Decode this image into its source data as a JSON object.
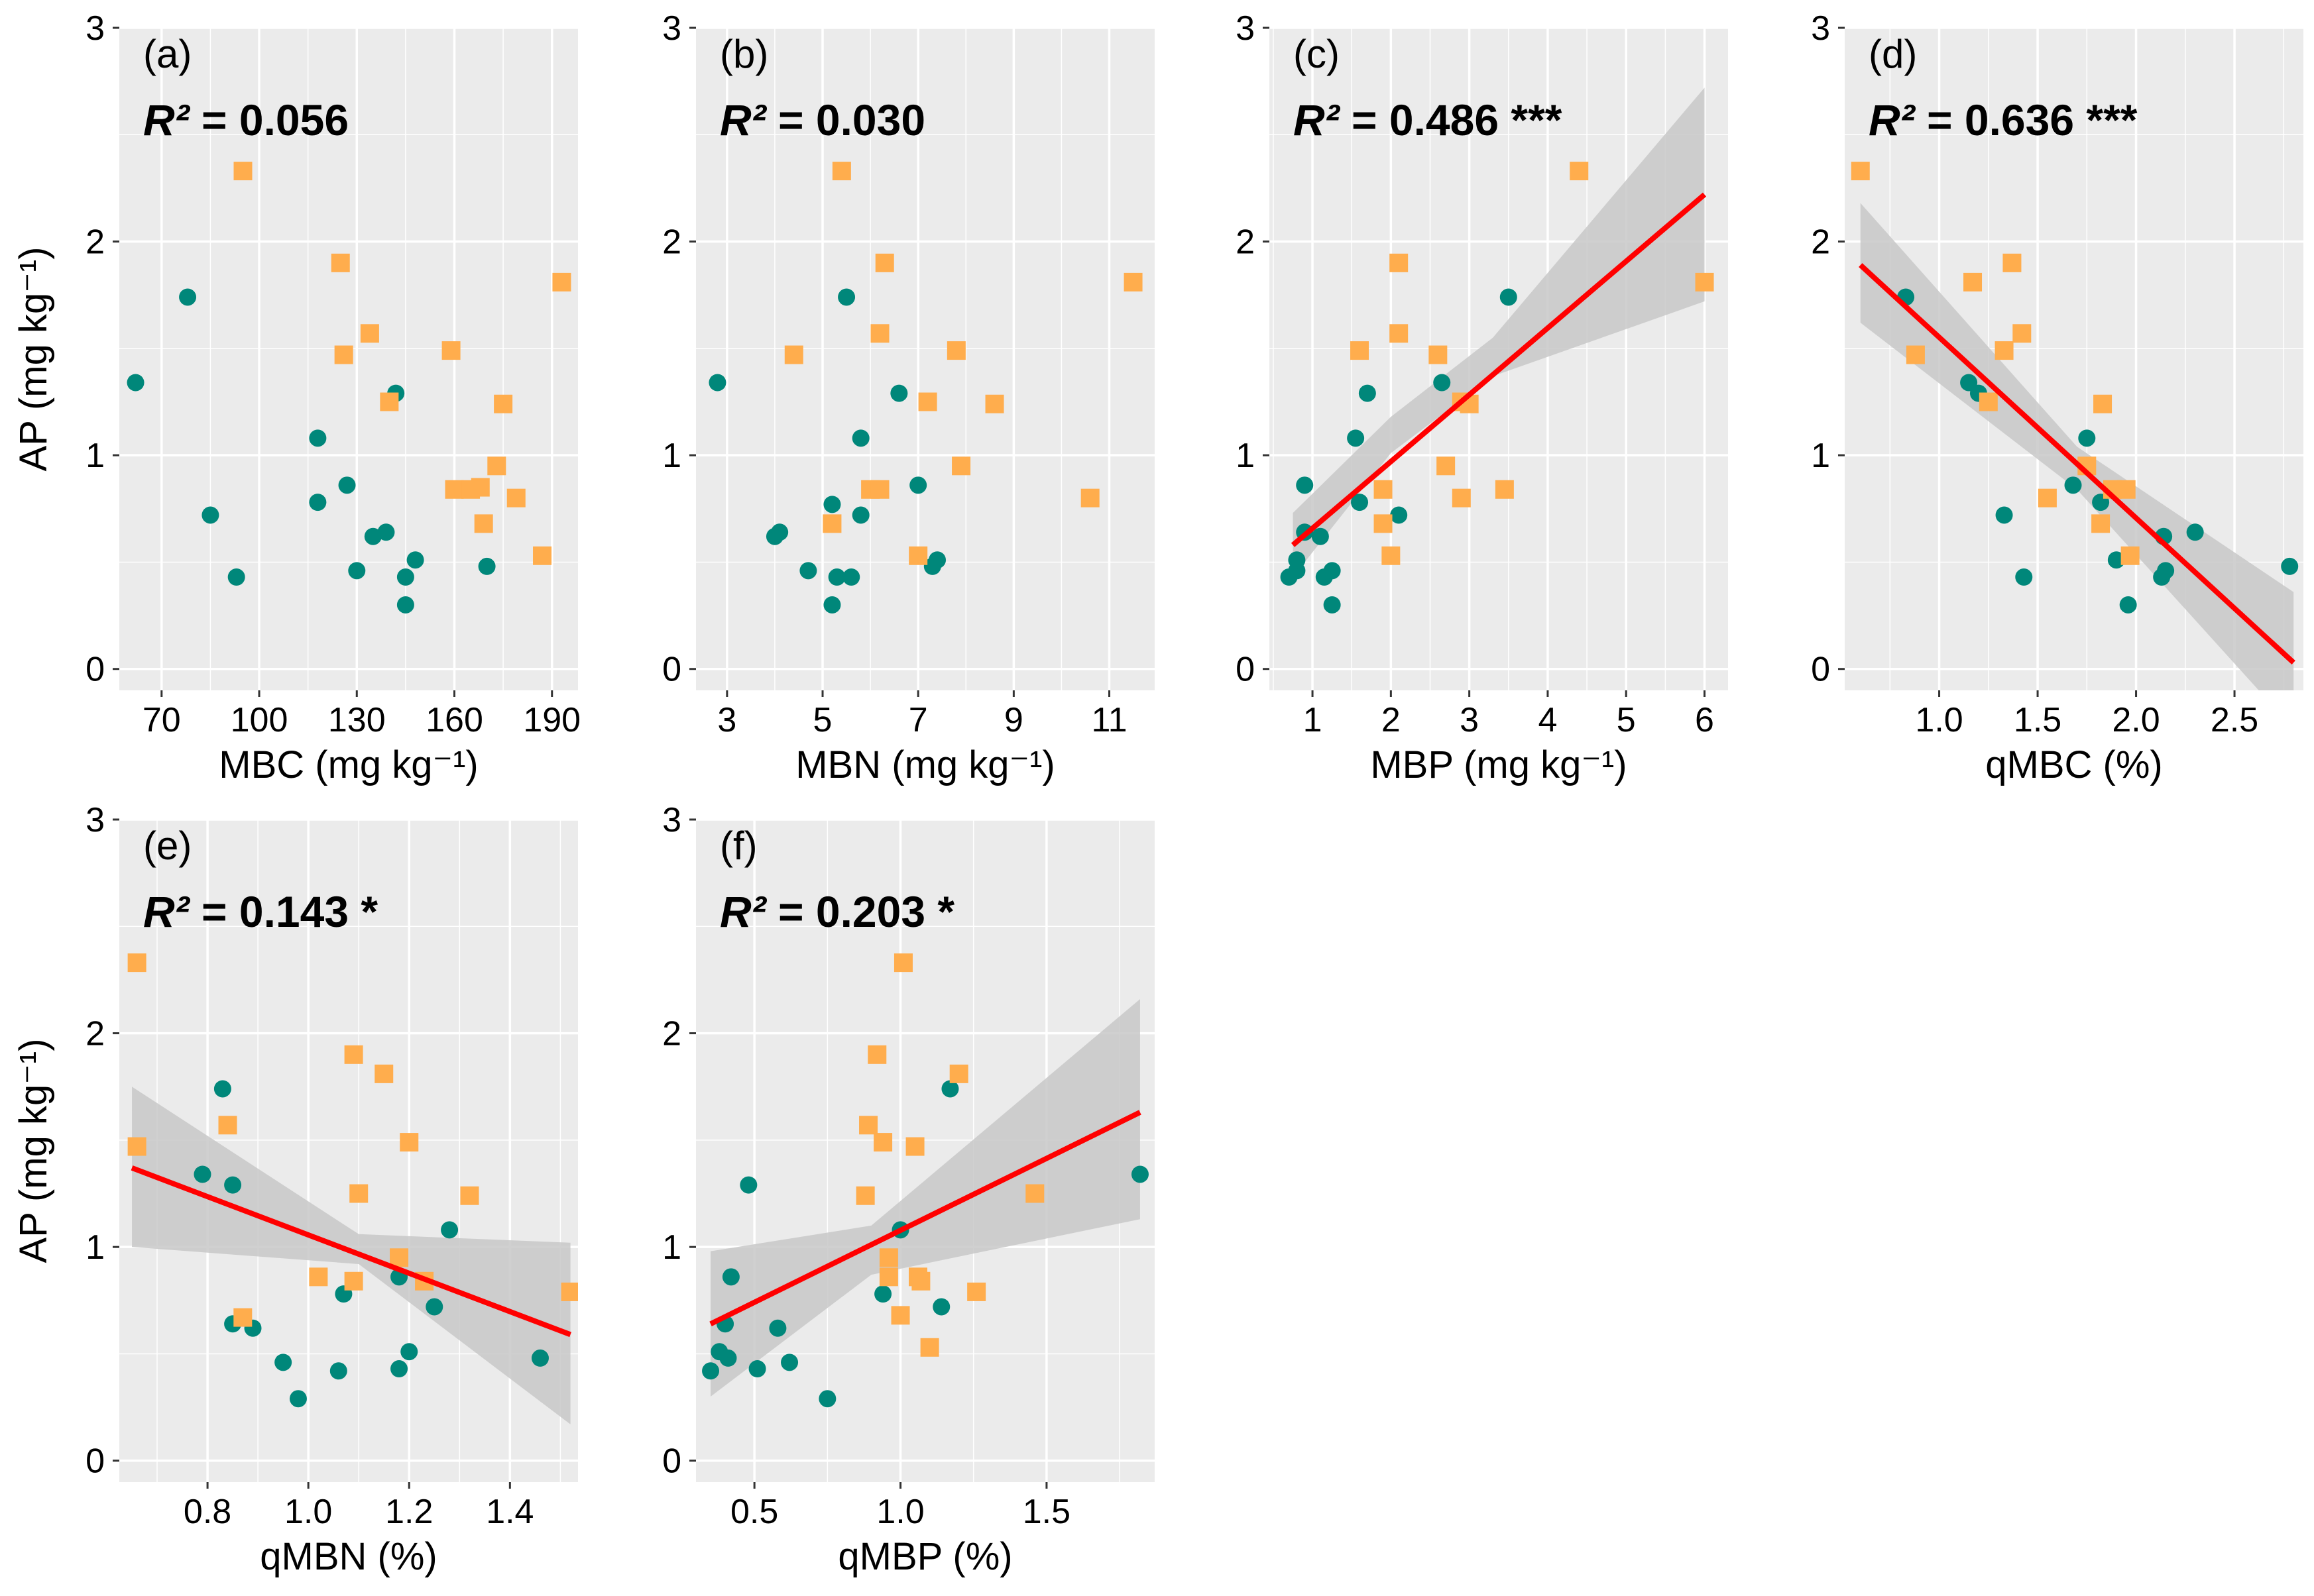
{
  "figure": {
    "y_label": "AP (mg kg⁻¹)",
    "colors": {
      "panel_bg": "#ebebeb",
      "grid": "#ffffff",
      "green": "#00877a",
      "orange": "#ffad4d",
      "fit_line": "#ff0000",
      "ci_band": "#c8c8c8",
      "tick_text": "#000000"
    },
    "marker_icons": [
      "circle-marker-icon",
      "square-marker-icon"
    ]
  },
  "chart_data": [
    {
      "type": "scatter",
      "panel_label": "(a)",
      "r2_symbol": "R²",
      "r2_value": "= 0.056",
      "significance": "",
      "xlabel": "MBC (mg kg⁻¹)",
      "ylabel": "AP (mg kg⁻¹)",
      "xlim": [
        57,
        198
      ],
      "ylim": [
        -0.1,
        3.0
      ],
      "x_ticks": [
        70,
        100,
        130,
        160,
        190
      ],
      "x_tick_labels": [
        "70",
        "100",
        "130",
        "160",
        "190"
      ],
      "y_ticks": [
        0,
        1,
        2,
        3
      ],
      "y_tick_labels": [
        "0",
        "1",
        "2",
        "3"
      ],
      "fit": null,
      "series": [
        {
          "name": "green",
          "marker": "circle",
          "points": [
            [
              62,
              1.34
            ],
            [
              78,
              1.74
            ],
            [
              85,
              0.72
            ],
            [
              93,
              0.43
            ],
            [
              118,
              1.08
            ],
            [
              118,
              0.78
            ],
            [
              127,
              0.86
            ],
            [
              130,
              0.46
            ],
            [
              135,
              0.62
            ],
            [
              139,
              0.64
            ],
            [
              142,
              1.29
            ],
            [
              145,
              0.43
            ],
            [
              148,
              0.51
            ],
            [
              145,
              0.3
            ],
            [
              170,
              0.48
            ]
          ]
        },
        {
          "name": "orange",
          "marker": "square",
          "points": [
            [
              95,
              2.33
            ],
            [
              125,
              1.9
            ],
            [
              126,
              1.47
            ],
            [
              134,
              1.57
            ],
            [
              140,
              1.25
            ],
            [
              159,
              1.49
            ],
            [
              160,
              0.84
            ],
            [
              165,
              0.84
            ],
            [
              168,
              0.85
            ],
            [
              169,
              0.68
            ],
            [
              173,
              0.95
            ],
            [
              175,
              1.24
            ],
            [
              179,
              0.8
            ],
            [
              187,
              0.53
            ],
            [
              193,
              1.81
            ]
          ]
        }
      ]
    },
    {
      "type": "scatter",
      "panel_label": "(b)",
      "r2_symbol": "R²",
      "r2_value": "= 0.030",
      "significance": "",
      "xlabel": "MBN (mg kg⁻¹)",
      "ylabel": "",
      "xlim": [
        2.35,
        11.95
      ],
      "ylim": [
        -0.1,
        3.0
      ],
      "x_ticks": [
        3,
        5,
        7,
        9,
        11
      ],
      "x_tick_labels": [
        "3",
        "5",
        "7",
        "9",
        "11"
      ],
      "y_ticks": [
        0,
        1,
        2,
        3
      ],
      "y_tick_labels": [
        "0",
        "1",
        "2",
        "3"
      ],
      "fit": null,
      "series": [
        {
          "name": "green",
          "marker": "circle",
          "points": [
            [
              2.8,
              1.34
            ],
            [
              4.0,
              0.62
            ],
            [
              4.1,
              0.64
            ],
            [
              4.7,
              0.46
            ],
            [
              5.2,
              0.77
            ],
            [
              5.3,
              0.43
            ],
            [
              5.5,
              1.74
            ],
            [
              5.6,
              0.43
            ],
            [
              5.8,
              1.08
            ],
            [
              5.8,
              0.72
            ],
            [
              6.6,
              1.29
            ],
            [
              7.0,
              0.86
            ],
            [
              7.3,
              0.48
            ],
            [
              7.4,
              0.51
            ],
            [
              5.2,
              0.3
            ]
          ]
        },
        {
          "name": "orange",
          "marker": "square",
          "points": [
            [
              5.4,
              2.33
            ],
            [
              6.3,
              1.9
            ],
            [
              4.4,
              1.47
            ],
            [
              6.2,
              1.57
            ],
            [
              7.2,
              1.25
            ],
            [
              7.8,
              1.49
            ],
            [
              6.0,
              0.84
            ],
            [
              6.2,
              0.84
            ],
            [
              5.2,
              0.68
            ],
            [
              7.0,
              0.53
            ],
            [
              7.9,
              0.95
            ],
            [
              8.6,
              1.24
            ],
            [
              10.6,
              0.8
            ],
            [
              11.5,
              1.81
            ]
          ]
        }
      ]
    },
    {
      "type": "scatter",
      "panel_label": "(c)",
      "r2_symbol": "R²",
      "r2_value": "= 0.486",
      "significance": "***",
      "xlabel": "MBP (mg kg⁻¹)",
      "ylabel": "",
      "xlim": [
        0.45,
        6.3
      ],
      "ylim": [
        -0.1,
        3.0
      ],
      "x_ticks": [
        1,
        2,
        3,
        4,
        5,
        6
      ],
      "x_tick_labels": [
        "1",
        "2",
        "3",
        "4",
        "5",
        "6"
      ],
      "y_ticks": [
        0,
        1,
        2,
        3
      ],
      "y_tick_labels": [
        "0",
        "1",
        "2",
        "3"
      ],
      "fit": {
        "x": [
          0.75,
          6.0
        ],
        "y": [
          0.58,
          2.22
        ],
        "band_x": [
          0.75,
          2.0,
          3.3,
          6.0
        ],
        "band_lower": [
          0.43,
          1.01,
          1.37,
          1.72
        ],
        "band_upper": [
          0.73,
          1.18,
          1.55,
          2.72
        ]
      },
      "series": [
        {
          "name": "green",
          "marker": "circle",
          "points": [
            [
              0.7,
              0.43
            ],
            [
              0.8,
              0.46
            ],
            [
              0.8,
              0.51
            ],
            [
              0.9,
              0.86
            ],
            [
              0.9,
              0.64
            ],
            [
              1.1,
              0.62
            ],
            [
              1.15,
              0.43
            ],
            [
              1.25,
              0.46
            ],
            [
              1.25,
              0.3
            ],
            [
              1.55,
              1.08
            ],
            [
              1.6,
              0.78
            ],
            [
              1.7,
              1.29
            ],
            [
              2.1,
              0.72
            ],
            [
              2.65,
              1.34
            ],
            [
              3.5,
              1.74
            ]
          ]
        },
        {
          "name": "orange",
          "marker": "square",
          "points": [
            [
              4.4,
              2.33
            ],
            [
              2.1,
              1.9
            ],
            [
              1.6,
              1.49
            ],
            [
              2.1,
              1.57
            ],
            [
              2.6,
              1.47
            ],
            [
              2.9,
              1.25
            ],
            [
              3.0,
              1.24
            ],
            [
              1.9,
              0.84
            ],
            [
              1.9,
              0.68
            ],
            [
              2.0,
              0.53
            ],
            [
              2.7,
              0.95
            ],
            [
              2.9,
              0.8
            ],
            [
              3.45,
              0.84
            ],
            [
              6.0,
              1.81
            ]
          ]
        }
      ]
    },
    {
      "type": "scatter",
      "panel_label": "(d)",
      "r2_symbol": "R²",
      "r2_value": "= 0.636",
      "significance": "***",
      "xlabel": "qMBC (%)",
      "ylabel": "",
      "xlim": [
        0.52,
        2.85
      ],
      "ylim": [
        -0.1,
        3.0
      ],
      "x_ticks": [
        1.0,
        1.5,
        2.0,
        2.5
      ],
      "x_tick_labels": [
        "1.0",
        "1.5",
        "2.0",
        "2.5"
      ],
      "y_ticks": [
        0,
        1,
        2,
        3
      ],
      "y_tick_labels": [
        "0",
        "1",
        "2",
        "3"
      ],
      "fit": {
        "x": [
          0.6,
          2.8
        ],
        "y": [
          1.89,
          0.03
        ],
        "band_x": [
          0.6,
          1.7,
          2.8
        ],
        "band_lower": [
          1.62,
          0.84,
          -0.28
        ],
        "band_upper": [
          2.18,
          1.04,
          0.36
        ]
      },
      "series": [
        {
          "name": "green",
          "marker": "circle",
          "points": [
            [
              0.83,
              1.74
            ],
            [
              1.15,
              1.34
            ],
            [
              1.2,
              1.29
            ],
            [
              1.33,
              0.72
            ],
            [
              1.43,
              0.43
            ],
            [
              1.68,
              0.86
            ],
            [
              1.75,
              1.08
            ],
            [
              1.82,
              0.78
            ],
            [
              1.9,
              0.51
            ],
            [
              1.96,
              0.3
            ],
            [
              2.13,
              0.43
            ],
            [
              2.15,
              0.46
            ],
            [
              2.14,
              0.62
            ],
            [
              2.3,
              0.64
            ],
            [
              2.78,
              0.48
            ]
          ]
        },
        {
          "name": "orange",
          "marker": "square",
          "points": [
            [
              0.6,
              2.33
            ],
            [
              0.88,
              1.47
            ],
            [
              1.17,
              1.81
            ],
            [
              1.25,
              1.25
            ],
            [
              1.33,
              1.49
            ],
            [
              1.37,
              1.9
            ],
            [
              1.42,
              1.57
            ],
            [
              1.55,
              0.8
            ],
            [
              1.83,
              1.24
            ],
            [
              1.82,
              0.68
            ],
            [
              1.88,
              0.84
            ],
            [
              1.95,
              0.84
            ],
            [
              1.97,
              0.53
            ],
            [
              1.75,
              0.95
            ]
          ]
        }
      ]
    },
    {
      "type": "scatter",
      "panel_label": "(e)",
      "r2_symbol": "R²",
      "r2_value": "= 0.143",
      "significance": "*",
      "xlabel": "qMBN (%)",
      "ylabel": "AP (mg kg⁻¹)",
      "xlim": [
        0.625,
        1.535
      ],
      "ylim": [
        -0.1,
        3.0
      ],
      "x_ticks": [
        0.8,
        1.0,
        1.2,
        1.4
      ],
      "x_tick_labels": [
        "0.8",
        "1.0",
        "1.2",
        "1.4"
      ],
      "y_ticks": [
        0,
        1,
        2,
        3
      ],
      "y_tick_labels": [
        "0",
        "1",
        "2",
        "3"
      ],
      "fit": {
        "x": [
          0.65,
          1.52
        ],
        "y": [
          1.37,
          0.59
        ],
        "band_x": [
          0.65,
          1.1,
          1.52
        ],
        "band_lower": [
          1.0,
          0.92,
          0.17
        ],
        "band_upper": [
          1.75,
          1.06,
          1.02
        ]
      },
      "series": [
        {
          "name": "green",
          "marker": "circle",
          "points": [
            [
              0.79,
              1.34
            ],
            [
              0.83,
              1.74
            ],
            [
              0.85,
              1.29
            ],
            [
              0.85,
              0.64
            ],
            [
              0.89,
              0.62
            ],
            [
              0.95,
              0.46
            ],
            [
              0.98,
              0.29
            ],
            [
              1.06,
              0.42
            ],
            [
              1.07,
              0.78
            ],
            [
              1.18,
              0.86
            ],
            [
              1.18,
              0.43
            ],
            [
              1.2,
              0.51
            ],
            [
              1.25,
              0.72
            ],
            [
              1.28,
              1.08
            ],
            [
              1.46,
              0.48
            ]
          ]
        },
        {
          "name": "orange",
          "marker": "square",
          "points": [
            [
              0.66,
              2.33
            ],
            [
              0.66,
              1.47
            ],
            [
              0.84,
              1.57
            ],
            [
              0.87,
              0.67
            ],
            [
              1.02,
              0.86
            ],
            [
              1.09,
              0.84
            ],
            [
              1.09,
              1.9
            ],
            [
              1.1,
              1.25
            ],
            [
              1.15,
              1.81
            ],
            [
              1.18,
              0.95
            ],
            [
              1.2,
              1.49
            ],
            [
              1.23,
              0.84
            ],
            [
              1.32,
              1.24
            ],
            [
              1.52,
              0.79
            ]
          ]
        }
      ]
    },
    {
      "type": "scatter",
      "panel_label": "(f)",
      "r2_symbol": "R²",
      "r2_value": "= 0.203",
      "significance": "*",
      "xlabel": "qMBP (%)",
      "ylabel": "",
      "xlim": [
        0.3,
        1.87
      ],
      "ylim": [
        -0.1,
        3.0
      ],
      "x_ticks": [
        0.5,
        1.0,
        1.5
      ],
      "x_tick_labels": [
        "0.5",
        "1.0",
        "1.5"
      ],
      "y_ticks": [
        0,
        1,
        2,
        3
      ],
      "y_tick_labels": [
        "0",
        "1",
        "2",
        "3"
      ],
      "fit": {
        "x": [
          0.35,
          1.82
        ],
        "y": [
          0.64,
          1.63
        ],
        "band_x": [
          0.35,
          0.9,
          1.82
        ],
        "band_lower": [
          0.3,
          0.87,
          1.13
        ],
        "band_upper": [
          0.98,
          1.1,
          2.16
        ]
      },
      "series": [
        {
          "name": "green",
          "marker": "circle",
          "points": [
            [
              0.35,
              0.42
            ],
            [
              0.38,
              0.51
            ],
            [
              0.4,
              0.64
            ],
            [
              0.41,
              0.48
            ],
            [
              0.42,
              0.86
            ],
            [
              0.48,
              1.29
            ],
            [
              0.51,
              0.43
            ],
            [
              0.58,
              0.62
            ],
            [
              0.62,
              0.46
            ],
            [
              0.75,
              0.29
            ],
            [
              0.94,
              0.78
            ],
            [
              1.0,
              1.08
            ],
            [
              1.14,
              0.72
            ],
            [
              1.17,
              1.74
            ],
            [
              1.82,
              1.34
            ]
          ]
        },
        {
          "name": "orange",
          "marker": "square",
          "points": [
            [
              1.01,
              2.33
            ],
            [
              0.92,
              1.9
            ],
            [
              0.89,
              1.57
            ],
            [
              0.94,
              1.49
            ],
            [
              1.05,
              1.47
            ],
            [
              1.2,
              1.81
            ],
            [
              0.88,
              1.24
            ],
            [
              0.96,
              0.95
            ],
            [
              0.96,
              0.86
            ],
            [
              1.06,
              0.86
            ],
            [
              1.07,
              0.84
            ],
            [
              1.0,
              0.68
            ],
            [
              1.26,
              0.79
            ],
            [
              1.1,
              0.53
            ],
            [
              1.46,
              1.25
            ]
          ]
        }
      ]
    }
  ]
}
